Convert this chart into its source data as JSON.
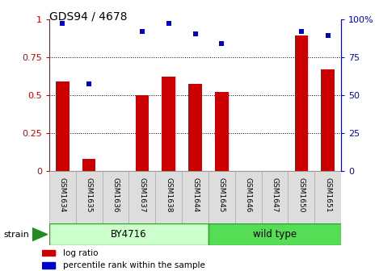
{
  "title": "GDS94 / 4678",
  "samples": [
    "GSM1634",
    "GSM1635",
    "GSM1636",
    "GSM1637",
    "GSM1638",
    "GSM1644",
    "GSM1645",
    "GSM1646",
    "GSM1647",
    "GSM1650",
    "GSM1651"
  ],
  "log_ratio": [
    0.59,
    0.08,
    0.0,
    0.5,
    0.62,
    0.57,
    0.52,
    0.0,
    0.0,
    0.89,
    0.67
  ],
  "percentile_rank": [
    97,
    57,
    0,
    92,
    97,
    90,
    84,
    0,
    0,
    92,
    89
  ],
  "bar_color": "#CC0000",
  "dot_color": "#0000CC",
  "ylim_left": [
    0,
    1.0
  ],
  "ylim_right": [
    0,
    100
  ],
  "yticks_left": [
    0,
    0.25,
    0.5,
    0.75,
    1.0
  ],
  "yticks_right": [
    0,
    25,
    50,
    75,
    100
  ],
  "ytick_labels_left": [
    "0",
    "0.25",
    "0.5",
    "0.75",
    "1"
  ],
  "ytick_labels_right": [
    "0",
    "25",
    "50",
    "75",
    "100%"
  ],
  "left_tick_color": "#CC0000",
  "right_tick_color": "#0000CC",
  "strain_label": "strain",
  "group1_label": "BY4716",
  "group1_samples": 6,
  "group1_light_color": "#CCFFCC",
  "group2_label": "wild type",
  "group2_samples": 5,
  "group2_color": "#55DD55",
  "group_border_color": "#22AA22",
  "legend_label1": "log ratio",
  "legend_label2": "percentile rank within the sample",
  "cell_color": "#DDDDDD",
  "cell_border_color": "#AAAAAA"
}
